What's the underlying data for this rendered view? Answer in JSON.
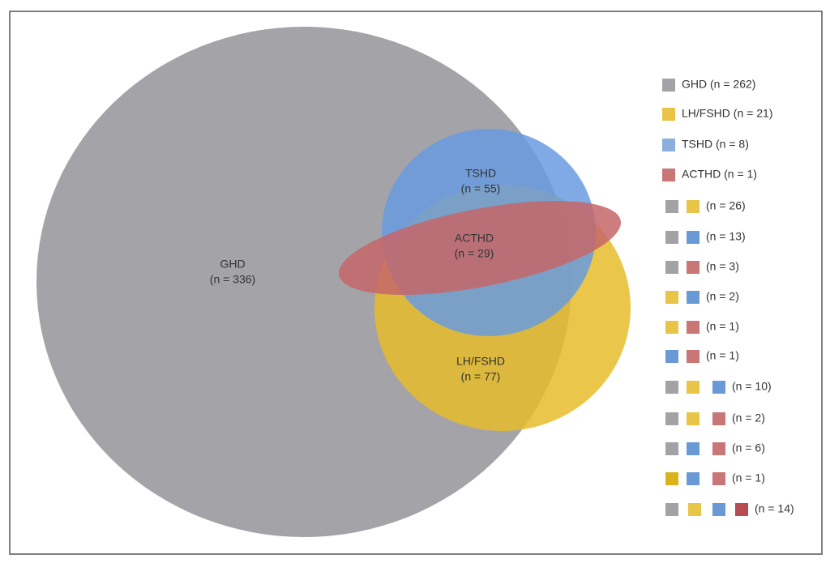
{
  "sets": [
    {
      "name": "GHD",
      "count": "(n = 336)",
      "color": "#9f9ea3"
    },
    {
      "name": "LH/FSHD",
      "count": "(n = 77)",
      "color": "#e6bd2c"
    },
    {
      "name": "TSHD",
      "count": "(n = 55)",
      "color": "#6a9be0"
    },
    {
      "name": "ACTHD",
      "count": "(n = 29)",
      "color": "#c56668"
    }
  ],
  "legend": [
    {
      "swatches": [
        "#a3a2a7"
      ],
      "label": "GHD (n = 262)"
    },
    {
      "swatches": [
        "#e8c549"
      ],
      "label": "LH/FSHD (n = 21)"
    },
    {
      "swatches": [
        "#8aafdc"
      ],
      "label": "TSHD (n = 8)"
    },
    {
      "swatches": [
        "#c97676"
      ],
      "label": "ACTHD (n = 1)"
    },
    {
      "swatches": [
        "#a3a2a7",
        "#e8c549"
      ],
      "label": "(n = 26)"
    },
    {
      "swatches": [
        "#a3a2a7",
        "#6a9ad6"
      ],
      "label": "(n = 13)"
    },
    {
      "swatches": [
        "#a3a2a7",
        "#c97676"
      ],
      "label": "(n = 3)"
    },
    {
      "swatches": [
        "#e8c549",
        "#6a9ad6"
      ],
      "label": "(n = 2)"
    },
    {
      "swatches": [
        "#e8c549",
        "#c97676"
      ],
      "label": "(n = 1)"
    },
    {
      "swatches": [
        "#6a9ad6",
        "#c97676"
      ],
      "label": "(n = 1)"
    },
    {
      "swatches": [
        "#a3a2a7",
        "#e8c549",
        "#6a9ad6"
      ],
      "label": "(n = 10)"
    },
    {
      "swatches": [
        "#a3a2a7",
        "#e8c549",
        "#c97676"
      ],
      "label": "(n = 2)"
    },
    {
      "swatches": [
        "#a3a2a7",
        "#6a9ad6",
        "#c97676"
      ],
      "label": "(n = 6)"
    },
    {
      "swatches": [
        "#d9b21c",
        "#6a9ad6",
        "#c97676"
      ],
      "label": "(n = 1)"
    },
    {
      "swatches": [
        "#a3a2a7",
        "#e8c549",
        "#6a9ad6",
        "#b84a50"
      ],
      "label": "(n = 14)"
    }
  ]
}
